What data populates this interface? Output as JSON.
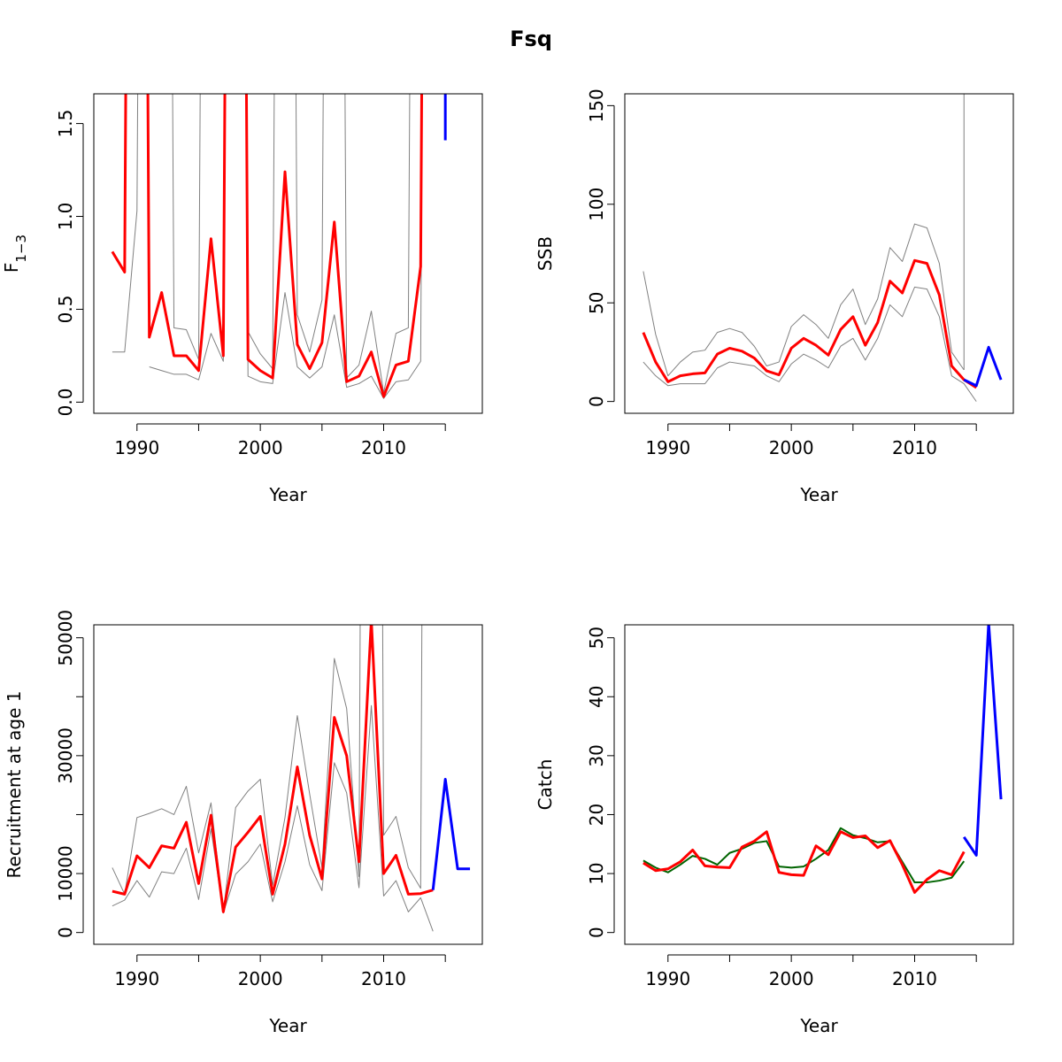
{
  "figure": {
    "title": "Fsq"
  },
  "chart_data": [
    {
      "id": "f",
      "type": "line",
      "title": "",
      "xlabel": "Year",
      "ylabel": "F",
      "ylabel_sub": "1−3",
      "xlim": [
        1986.5,
        2018
      ],
      "ylim": [
        -0.06,
        1.66
      ],
      "xticks": [
        1990,
        1995,
        2000,
        2005,
        2010,
        2015
      ],
      "xticklabels": [
        "1990",
        "",
        "2000",
        "",
        "2010",
        ""
      ],
      "yticks": [
        0,
        0.5,
        1.0,
        1.5
      ],
      "yticklabels": [
        "0.0",
        "0.5",
        "1.0",
        "1.5"
      ],
      "series": [
        {
          "role": "upper",
          "color": "#808080",
          "x": [
            1988,
            1989,
            1990,
            1991,
            1992,
            1993,
            1994,
            1995,
            1996,
            1997,
            1998,
            1999,
            2000,
            2001,
            2002,
            2003,
            2004,
            2005,
            2006,
            2007,
            2008,
            2009,
            2010,
            2011,
            2012,
            2013,
            2014
          ],
          "y": [
            0.27,
            0.27,
            1.03,
            null,
            null,
            0.4,
            0.39,
            0.23,
            null,
            null,
            null,
            0.38,
            0.26,
            0.18,
            null,
            0.47,
            0.27,
            0.55,
            null,
            0.13,
            0.2,
            0.49,
            0.05,
            0.37,
            0.4,
            null,
            null
          ]
        },
        {
          "role": "lower",
          "color": "#808080",
          "x": [
            1991,
            1992,
            1993,
            1994,
            1995,
            1996,
            1997,
            1998,
            1999,
            2000,
            2001,
            2002,
            2003,
            2004,
            2005,
            2006,
            2007,
            2008,
            2009,
            2010,
            2011,
            2012,
            2013,
            2014
          ],
          "y": [
            0.19,
            0.17,
            0.15,
            0.15,
            0.12,
            0.37,
            0.22,
            null,
            0.14,
            0.11,
            0.1,
            0.59,
            0.19,
            0.13,
            0.19,
            0.47,
            0.08,
            0.1,
            0.14,
            0.02,
            0.11,
            0.12,
            0.22,
            null
          ]
        },
        {
          "role": "estimate",
          "color": "#ff0000",
          "x": [
            1988,
            1989,
            1990,
            1991,
            1992,
            1993,
            1994,
            1995,
            1996,
            1997,
            1998,
            1999,
            2000,
            2001,
            2002,
            2003,
            2004,
            2005,
            2006,
            2007,
            2008,
            2009,
            2010,
            2011,
            2012,
            2013,
            2014
          ],
          "y": [
            0.81,
            0.7,
            null,
            0.35,
            0.59,
            0.25,
            0.25,
            0.17,
            0.88,
            0.25,
            null,
            0.23,
            0.17,
            0.13,
            1.24,
            0.31,
            0.18,
            0.32,
            0.97,
            0.11,
            0.14,
            0.27,
            0.03,
            0.2,
            0.22,
            0.73,
            null
          ]
        },
        {
          "role": "projection",
          "color": "#0000ff",
          "x": [
            2015,
            2015
          ],
          "y": [
            null,
            1.41
          ]
        }
      ]
    },
    {
      "id": "ssb",
      "type": "line",
      "title": "",
      "xlabel": "Year",
      "ylabel": "SSB",
      "ylabel_sub": "",
      "xlim": [
        1986.5,
        2018
      ],
      "ylim": [
        -6,
        156
      ],
      "xticks": [
        1990,
        1995,
        2000,
        2005,
        2010,
        2015
      ],
      "xticklabels": [
        "1990",
        "",
        "2000",
        "",
        "2010",
        ""
      ],
      "yticks": [
        0,
        50,
        100,
        150
      ],
      "yticklabels": [
        "0",
        "50",
        "100",
        "150"
      ],
      "series": [
        {
          "role": "upper",
          "color": "#808080",
          "x": [
            1988,
            1989,
            1990,
            1991,
            1992,
            1993,
            1994,
            1995,
            1996,
            1997,
            1998,
            1999,
            2000,
            2001,
            2002,
            2003,
            2004,
            2005,
            2006,
            2007,
            2008,
            2009,
            2010,
            2011,
            2012,
            2013,
            2014
          ],
          "y": [
            66,
            34,
            13,
            20,
            25,
            26,
            35,
            37,
            35,
            28,
            18,
            20,
            38,
            44,
            39,
            32,
            49,
            57,
            39,
            52,
            78,
            71,
            90,
            88,
            70,
            25,
            16
          ]
        },
        {
          "role": "lower",
          "color": "#808080",
          "x": [
            1988,
            1989,
            1990,
            1991,
            1992,
            1993,
            1994,
            1995,
            1996,
            1997,
            1998,
            1999,
            2000,
            2001,
            2002,
            2003,
            2004,
            2005,
            2006,
            2007,
            2008,
            2009,
            2010,
            2011,
            2012,
            2013,
            2014,
            2015
          ],
          "y": [
            20,
            13,
            8,
            9,
            9,
            9,
            17,
            20,
            19,
            18,
            13,
            10,
            19,
            24,
            21,
            17,
            28,
            32,
            21,
            32,
            49,
            43,
            58,
            57,
            43,
            13,
            9,
            0
          ]
        },
        {
          "role": "upper-projection",
          "color": "#808080",
          "x": [
            2014,
            2014
          ],
          "y": [
            16,
            null
          ]
        },
        {
          "role": "estimate",
          "color": "#ff0000",
          "x": [
            1988,
            1989,
            1990,
            1991,
            1992,
            1993,
            1994,
            1995,
            1996,
            1997,
            1998,
            1999,
            2000,
            2001,
            2002,
            2003,
            2004,
            2005,
            2006,
            2007,
            2008,
            2009,
            2010,
            2011,
            2012,
            2013,
            2014,
            2015
          ],
          "y": [
            35,
            20,
            10,
            13,
            14,
            14.5,
            24,
            27,
            25.5,
            22,
            15.5,
            13.5,
            27,
            32,
            28.5,
            23.5,
            36.5,
            43,
            28.5,
            40,
            61,
            55,
            71.5,
            70,
            54,
            18,
            11,
            7
          ]
        },
        {
          "role": "projection",
          "color": "#0000ff",
          "x": [
            2014,
            2015,
            2016,
            2017
          ],
          "y": [
            11,
            8,
            27.5,
            11
          ]
        }
      ]
    },
    {
      "id": "rec",
      "type": "line",
      "title": "",
      "xlabel": "Year",
      "ylabel": "Recruitment at age 1",
      "ylabel_sub": "",
      "xlim": [
        1986.5,
        2018
      ],
      "ylim": [
        -2000,
        52200
      ],
      "xticks": [
        1990,
        1995,
        2000,
        2005,
        2010,
        2015
      ],
      "xticklabels": [
        "1990",
        "",
        "2000",
        "",
        "2010",
        ""
      ],
      "yticks": [
        0,
        10000,
        20000,
        30000,
        40000,
        50000
      ],
      "yticklabels": [
        "0",
        "10000",
        "",
        "30000",
        "",
        "50000"
      ],
      "series": [
        {
          "role": "upper",
          "color": "#808080",
          "x": [
            1988,
            1989,
            1990,
            1991,
            1992,
            1993,
            1994,
            1995,
            1996,
            1997,
            1998,
            1999,
            2000,
            2001,
            2002,
            2003,
            2004,
            2005,
            2006,
            2007,
            2008,
            2009,
            2010,
            2011,
            2012,
            2013,
            2014
          ],
          "y": [
            11000,
            6500,
            19500,
            20200,
            21000,
            20000,
            24800,
            13500,
            22000,
            3500,
            21200,
            24000,
            26000,
            8000,
            19500,
            36800,
            23500,
            11000,
            46500,
            38000,
            9500,
            null,
            16500,
            19700,
            11000,
            7500,
            null
          ]
        },
        {
          "role": "lower",
          "color": "#808080",
          "x": [
            1988,
            1989,
            1990,
            1991,
            1992,
            1993,
            1994,
            1995,
            1996,
            1997,
            1998,
            1999,
            2000,
            2001,
            2002,
            2003,
            2004,
            2005,
            2006,
            2007,
            2008,
            2009,
            2010,
            2011,
            2012,
            2013,
            2014
          ],
          "y": [
            4500,
            5500,
            8800,
            6000,
            10300,
            10000,
            14300,
            5600,
            17600,
            3300,
            9900,
            12000,
            15000,
            5200,
            12000,
            21500,
            11500,
            7100,
            28800,
            23700,
            7600,
            38500,
            6200,
            8800,
            3500,
            5900,
            200
          ]
        },
        {
          "role": "estimate",
          "color": "#ff0000",
          "x": [
            1988,
            1989,
            1990,
            1991,
            1992,
            1993,
            1994,
            1995,
            1996,
            1997,
            1998,
            1999,
            2000,
            2001,
            2002,
            2003,
            2004,
            2005,
            2006,
            2007,
            2008,
            2009,
            2010,
            2011,
            2012,
            2013,
            2014
          ],
          "y": [
            7000,
            6500,
            13000,
            11000,
            14700,
            14300,
            18700,
            8300,
            19900,
            3500,
            14500,
            17000,
            19700,
            6500,
            15000,
            28100,
            16500,
            9100,
            36500,
            30000,
            12000,
            53000,
            10000,
            13100,
            6500,
            6600,
            7200
          ]
        },
        {
          "role": "projection",
          "color": "#0000ff",
          "x": [
            2014,
            2015,
            2016,
            2017
          ],
          "y": [
            7200,
            26000,
            10800,
            10800
          ]
        }
      ]
    },
    {
      "id": "catch",
      "type": "line",
      "title": "",
      "xlabel": "Year",
      "ylabel": "Catch",
      "ylabel_sub": "",
      "xlim": [
        1986.5,
        2018
      ],
      "ylim": [
        -2,
        52.2
      ],
      "xticks": [
        1990,
        1995,
        2000,
        2005,
        2010,
        2015
      ],
      "xticklabels": [
        "1990",
        "",
        "2000",
        "",
        "2010",
        ""
      ],
      "yticks": [
        0,
        10,
        20,
        30,
        40,
        50
      ],
      "yticklabels": [
        "0",
        "10",
        "20",
        "30",
        "40",
        "50"
      ],
      "series": [
        {
          "role": "observed",
          "color": "#006400",
          "x": [
            1988,
            1989,
            1990,
            1991,
            1992,
            1993,
            1994,
            1995,
            1996,
            1997,
            1998,
            1999,
            2000,
            2001,
            2002,
            2003,
            2004,
            2005,
            2006,
            2007,
            2008,
            2009,
            2010,
            2011,
            2012,
            2013,
            2014
          ],
          "y": [
            12.2,
            11,
            10.2,
            11.5,
            13,
            12.5,
            11.5,
            13.5,
            14.2,
            15.2,
            15.5,
            11.2,
            11,
            11.2,
            12.5,
            14,
            17.7,
            16.5,
            16,
            15.3,
            15.5,
            12,
            8.5,
            8.5,
            8.8,
            9.3,
            12.1
          ]
        },
        {
          "role": "estimate",
          "color": "#ff0000",
          "x": [
            1988,
            1989,
            1990,
            1991,
            1992,
            1993,
            1994,
            1995,
            1996,
            1997,
            1998,
            1999,
            2000,
            2001,
            2002,
            2003,
            2004,
            2005,
            2006,
            2007,
            2008,
            2009,
            2010,
            2011,
            2012,
            2013,
            2014
          ],
          "y": [
            11.8,
            10.5,
            10.8,
            12,
            14,
            11.3,
            11.1,
            11,
            14.5,
            15.5,
            17.1,
            10.2,
            9.8,
            9.7,
            14.7,
            13.2,
            17.1,
            16.1,
            16.4,
            14.4,
            15.6,
            11.5,
            6.8,
            9,
            10.5,
            9.8,
            13.7
          ]
        },
        {
          "role": "projection",
          "color": "#0000ff",
          "x": [
            2014,
            2015,
            2016,
            2017
          ],
          "y": [
            16.2,
            13.1,
            52.5,
            22.6
          ]
        }
      ]
    }
  ]
}
